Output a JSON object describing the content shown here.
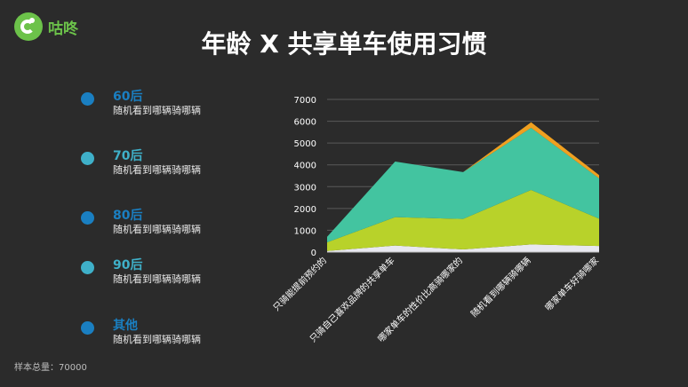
{
  "brand": {
    "name": "咕咚",
    "icon": "gudong-logo-icon",
    "color": "#6cc24a"
  },
  "title": "年龄 X 共享单车使用习惯",
  "legend": [
    {
      "name": "60后",
      "desc": "随机看到哪辆骑哪辆",
      "color": "#1a7fc1"
    },
    {
      "name": "70后",
      "desc": "随机看到哪辆骑哪辆",
      "color": "#3fb0c9"
    },
    {
      "name": "80后",
      "desc": "随机看到哪辆骑哪辆",
      "color": "#1a7fc1"
    },
    {
      "name": "90后",
      "desc": "随机看到哪辆骑哪辆",
      "color": "#3fb0c9"
    },
    {
      "name": "其他",
      "desc": "随机看到哪辆骑哪辆",
      "color": "#1a7fc1"
    }
  ],
  "footnote": "样本总量：70000",
  "chart_data": {
    "type": "area",
    "stacked": true,
    "categories": [
      "只骑能提前预约的",
      "只骑自己喜欢品牌的共享单车",
      "哪家单车的性价比高骑哪家的",
      "随机看到哪辆骑哪辆",
      "哪家单车好骑哪家"
    ],
    "ylim": [
      0,
      7000
    ],
    "yticks": [
      0,
      1000,
      2000,
      3000,
      4000,
      5000,
      6000,
      7000
    ],
    "grid": true,
    "series": [
      {
        "values": [
          50,
          300,
          120,
          350,
          280
        ],
        "color": "#e8e8f0"
      },
      {
        "values": [
          400,
          1300,
          1400,
          2500,
          1250
        ],
        "color": "#b8d22a"
      },
      {
        "values": [
          250,
          2550,
          2150,
          2850,
          1850
        ],
        "color": "#43c4a0"
      },
      {
        "values": [
          0,
          0,
          0,
          250,
          150
        ],
        "color": "#f0a020"
      }
    ]
  }
}
